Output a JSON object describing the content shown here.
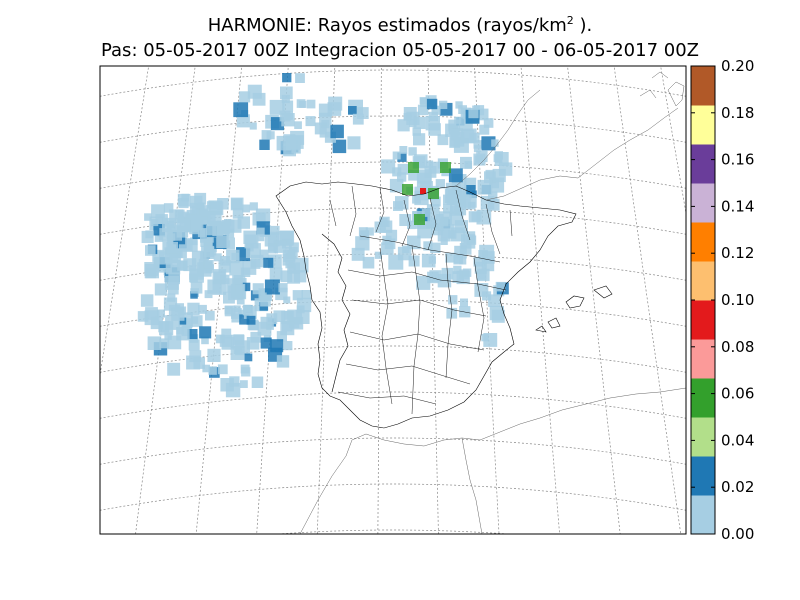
{
  "title": {
    "line1_prefix": "HARMONIE: Rayos estimados  (rayos/km",
    "line1_sup": "2",
    "line1_suffix": " ).",
    "line2": "Pas: 05-05-2017 00Z Integracion 05-05-2017 00 - 06-05-2017 00Z"
  },
  "colorbar": {
    "unit": "rayos/km2",
    "min": 0.0,
    "max": 0.2,
    "ticks": [
      "0.00",
      "0.02",
      "0.04",
      "0.06",
      "0.08",
      "0.10",
      "0.12",
      "0.14",
      "0.16",
      "0.18",
      "0.20"
    ],
    "colors": [
      "#a6cee3",
      "#1f78b4",
      "#b2df8a",
      "#33a02c",
      "#fb9a99",
      "#e31a1c",
      "#fdbf6f",
      "#ff7f00",
      "#cab2d6",
      "#6a3d9a",
      "#ffff99",
      "#b15928"
    ]
  },
  "map": {
    "region": "Iberian Peninsula",
    "projection": "conic",
    "graticule": "dotted",
    "field_colors": {
      "low": "#a6cee3",
      "mid": "#1f78b4",
      "high": "#33a02c",
      "peak": "#e31a1c"
    }
  }
}
